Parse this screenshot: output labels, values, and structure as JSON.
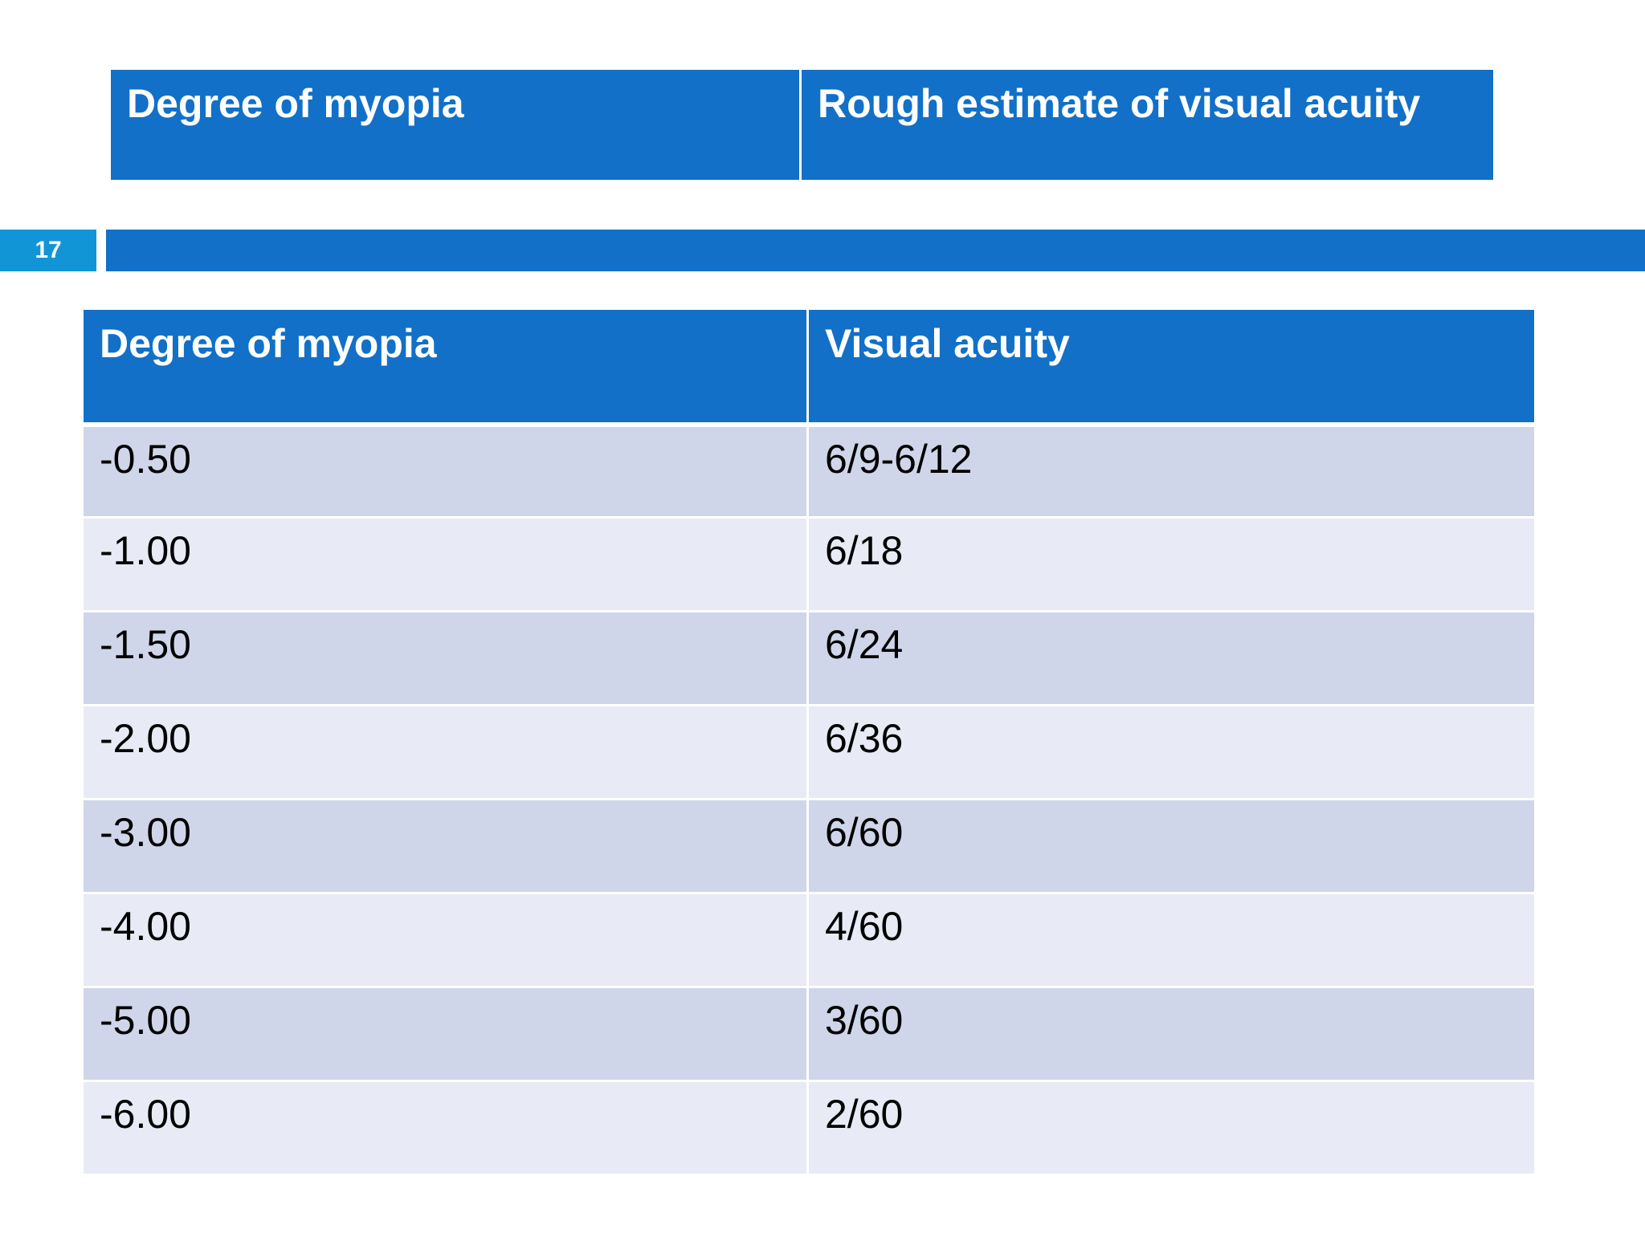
{
  "top_table": {
    "headers": [
      "Degree of myopia",
      "Rough estimate of visual acuity"
    ]
  },
  "slide_number": "17",
  "main_table": {
    "headers": [
      "Degree of myopia",
      "Visual acuity"
    ],
    "rows": [
      [
        "-0.50",
        "6/9-6/12"
      ],
      [
        "-1.00",
        "6/18"
      ],
      [
        "-1.50",
        "6/24"
      ],
      [
        "-2.00",
        "6/36"
      ],
      [
        "-3.00",
        "6/60"
      ],
      [
        "-4.00",
        "4/60"
      ],
      [
        "-5.00",
        "3/60"
      ],
      [
        "-6.00",
        "2/60"
      ]
    ]
  },
  "colors": {
    "header_blue": "#1270c8",
    "slide_number_blue": "#1295d6",
    "row_dark": "#cfd6e9",
    "row_light": "#e8ebf5"
  }
}
